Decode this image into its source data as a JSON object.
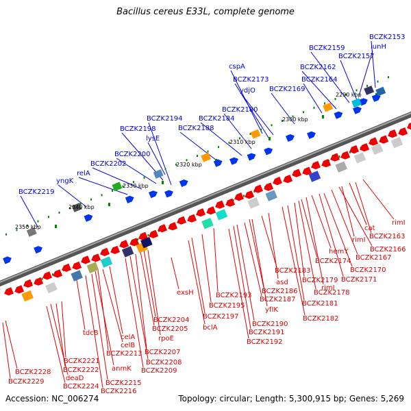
{
  "title": "Bacillus cereus E33L, complete genome",
  "footer": {
    "accession": "Accession: NC_006274",
    "summary": "Topology: circular; Length: 5,300,915 bp; Genes: 5,269"
  },
  "colors": {
    "forward_label": "#0000dd",
    "reverse_label": "#dd0000",
    "backbone": "#777777",
    "tick": "#008800",
    "forward_gene": "#0033ee",
    "reverse_gene": "#ee0000"
  },
  "scale_labels": [
    "2290 kbp",
    "2300 kbp",
    "2310 kbp",
    "2320 kbp",
    "2330 kbp",
    "2340 kbp",
    "2350 kbp"
  ],
  "forward_labels": [
    "BCZK2153",
    "iunH",
    "BCZK2159",
    "BCZK2157",
    "BCZK2162",
    "BCZK2164",
    "cspA",
    "BCZK2173",
    "ydjO",
    "BCZK2169",
    "BCZK2180",
    "BCZK2194",
    "BCZK2184",
    "BCZK2198",
    "lysE",
    "BCZK2188",
    "BCZK2200",
    "BCZK2202",
    "relA",
    "yngK",
    "BCZK2219"
  ],
  "reverse_labels": [
    "rimI",
    "cat",
    "rimI",
    "BCZK2163",
    "BCZK2166",
    "BCZK2167",
    "hemY",
    "BCZK2170",
    "BCZK2174",
    "BCZK2171",
    "rimI",
    "BCZK2179",
    "BCZK2183",
    "asd",
    "BCZK2178",
    "BCZK2186",
    "BCZK2187",
    "BCZK2181",
    "exsH",
    "BCZK2193",
    "BCZK2195",
    "yfIK",
    "BCZK2182",
    "BCZK2197",
    "bclA",
    "BCZK2190",
    "BCZK2191",
    "BCZK2192",
    "BCZK2204",
    "BCZK2205",
    "celA",
    "rpoE",
    "celB",
    "tdcB",
    "BCZK2213",
    "BCZK2207",
    "BCZK2208",
    "BCZK2221",
    "BCZK2209",
    "anmK",
    "BCZK2228",
    "BCZK2222",
    "deaD",
    "BCZK2215",
    "BCZK2229",
    "BCZK2224",
    "BCZK2216"
  ]
}
